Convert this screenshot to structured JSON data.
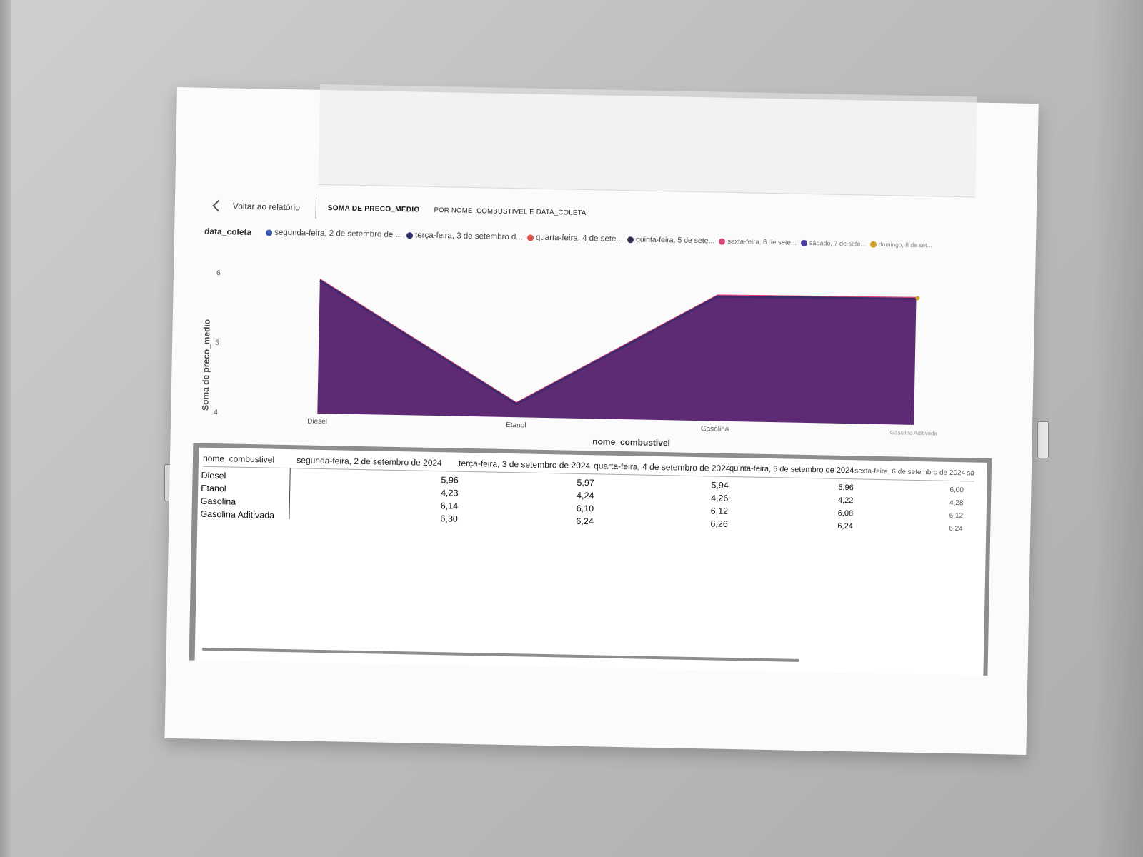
{
  "header": {
    "back_label": "Voltar ao relatório",
    "title": "SOMA DE PRECO_MEDIO",
    "subtitle": "POR NOME_COMBUSTIVEL E DATA_COLETA"
  },
  "legend": {
    "title": "data_coleta",
    "items": [
      {
        "label": "segunda-feira, 2 de setembro de ...",
        "color": "#3c5aa6"
      },
      {
        "label": "terça-feira, 3 de setembro d...",
        "color": "#2f2d6b"
      },
      {
        "label": "quarta-feira, 4 de sete...",
        "color": "#d9534f"
      },
      {
        "label": "quinta-feira, 5 de sete...",
        "color": "#3d2f55"
      },
      {
        "label": "sexta-feira, 6 de sete...",
        "color": "#d9477a"
      },
      {
        "label": "sábado, 7 de sete...",
        "color": "#4a3c9b"
      },
      {
        "label": "domingo, 8 de set...",
        "color": "#d4a12a"
      }
    ]
  },
  "chart_data": {
    "type": "area",
    "title": "SOMA DE PRECO_MEDIO POR NOME_COMBUSTIVEL E DATA_COLETA",
    "xlabel": "nome_combustivel",
    "ylabel": "Soma de preco_medio",
    "categories": [
      "Diesel",
      "Etanol",
      "Gasolina",
      "Gasolina Aditivada"
    ],
    "ylim": [
      4,
      6
    ],
    "yticks": [
      4,
      5,
      6
    ],
    "series": [
      {
        "name": "segunda-feira, 2 de setembro de 2024",
        "values": [
          5.96,
          4.23,
          6.14,
          6.3
        ]
      },
      {
        "name": "terça-feira, 3 de setembro de 2024",
        "values": [
          5.97,
          4.24,
          6.1,
          6.24
        ]
      },
      {
        "name": "quarta-feira, 4 de setembro de 2024",
        "values": [
          5.94,
          4.26,
          6.12,
          6.26
        ]
      },
      {
        "name": "quinta-feira, 5 de setembro de 2024",
        "values": [
          5.96,
          4.22,
          6.08,
          6.24
        ]
      },
      {
        "name": "sexta-feira, 6 de setembro de 2024",
        "values": [
          6.0,
          4.28,
          6.12,
          6.24
        ]
      }
    ],
    "display_series": [
      {
        "name": "visible-area",
        "values": [
          5.92,
          4.2,
          5.8,
          5.82
        ]
      }
    ]
  },
  "table": {
    "headers": [
      "nome_combustivel",
      "segunda-feira, 2 de setembro de 2024",
      "terça-feira, 3 de setembro de 2024",
      "quarta-feira, 4 de setembro de 2024",
      "quinta-feira, 5 de setembro de 2024",
      "sexta-feira, 6 de setembro de 2024",
      "sá"
    ],
    "rows": [
      {
        "name": "Diesel",
        "values": [
          "5,96",
          "5,97",
          "5,94",
          "5,96",
          "6,00"
        ]
      },
      {
        "name": "Etanol",
        "values": [
          "4,23",
          "4,24",
          "4,26",
          "4,22",
          "4,28"
        ]
      },
      {
        "name": "Gasolina",
        "values": [
          "6,14",
          "6,10",
          "6,12",
          "6,08",
          "6,12"
        ]
      },
      {
        "name": "Gasolina Aditivada",
        "values": [
          "6,30",
          "6,24",
          "6,26",
          "6,24",
          "6,24"
        ]
      }
    ]
  },
  "colors": {
    "area_fill": "#5e2a73",
    "area_top": "#3e2a6b",
    "line_pink": "#d9477a"
  }
}
